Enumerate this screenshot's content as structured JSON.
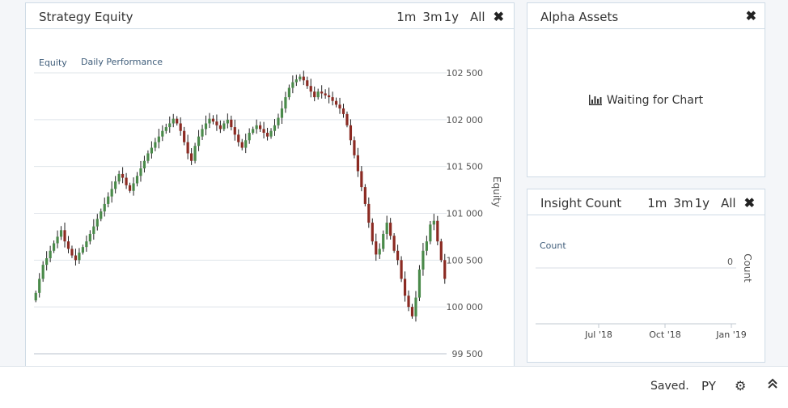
{
  "panels": {
    "equity": {
      "title": "Strategy Equity",
      "ranges": [
        "1m",
        "3m",
        "1y",
        "All"
      ],
      "tabs": [
        "Equity",
        "Daily Performance"
      ]
    },
    "alpha": {
      "title": "Alpha Assets",
      "waiting_text": "Waiting for Chart"
    },
    "insight": {
      "title": "Insight Count",
      "ranges": [
        "1m",
        "3m",
        "1y",
        "All"
      ],
      "series_label": "Count"
    }
  },
  "footer": {
    "status": "Saved.",
    "language": "PY"
  },
  "chart_data": [
    {
      "type": "candlestick",
      "title": "",
      "ylabel": "Equity",
      "ylim": [
        99500,
        102500
      ],
      "y_ticks": [
        {
          "value": 99500,
          "label": "99 500"
        },
        {
          "value": 100000,
          "label": "100 000"
        },
        {
          "value": 100500,
          "label": "100 500"
        },
        {
          "value": 101000,
          "label": "101 000"
        },
        {
          "value": 101500,
          "label": "101 500"
        },
        {
          "value": 102000,
          "label": "102 000"
        },
        {
          "value": 102500,
          "label": "102 500"
        }
      ],
      "grid": true,
      "series": [
        {
          "name": "Equity",
          "close": [
            100150,
            100300,
            100450,
            100520,
            100600,
            100680,
            100750,
            100820,
            100700,
            100620,
            100550,
            100500,
            100580,
            100640,
            100700,
            100780,
            100860,
            100940,
            101020,
            101100,
            101180,
            101260,
            101340,
            101420,
            101380,
            101300,
            101240,
            101320,
            101400,
            101480,
            101560,
            101640,
            101700,
            101760,
            101820,
            101880,
            101920,
            101960,
            102010,
            101960,
            101880,
            101760,
            101640,
            101560,
            101720,
            101820,
            101900,
            101960,
            102010,
            101980,
            101940,
            101900,
            101960,
            102000,
            101920,
            101840,
            101760,
            101700,
            101780,
            101860,
            101900,
            101940,
            101900,
            101860,
            101820,
            101880,
            101940,
            102020,
            102120,
            102240,
            102340,
            102400,
            102430,
            102460,
            102420,
            102360,
            102300,
            102240,
            102300,
            102280,
            102260,
            102240,
            102200,
            102160,
            102120,
            102060,
            101940,
            101780,
            101620,
            101450,
            101280,
            101100,
            100900,
            100700,
            100560,
            100620,
            100780,
            100900,
            100760,
            100600,
            100500,
            100300,
            100120,
            100000,
            99900,
            100100,
            100400,
            100600,
            100700,
            100880,
            100920,
            100700,
            100500,
            100300
          ],
          "color_up": "#4a8a4a",
          "color_down": "#8b2a22"
        }
      ],
      "x_tick_labels": []
    },
    {
      "type": "line",
      "title": "",
      "ylabel": "Count",
      "y_ticks": [
        {
          "value": 0,
          "label": "0"
        }
      ],
      "x_tick_labels": [
        "Jul '18",
        "Oct '18",
        "Jan '19"
      ],
      "series": [
        {
          "name": "Count",
          "values": []
        }
      ]
    }
  ]
}
